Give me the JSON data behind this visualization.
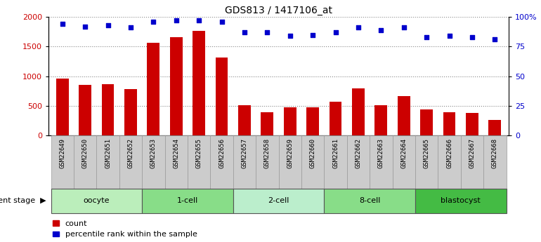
{
  "title": "GDS813 / 1417106_at",
  "samples": [
    "GSM22649",
    "GSM22650",
    "GSM22651",
    "GSM22652",
    "GSM22653",
    "GSM22654",
    "GSM22655",
    "GSM22656",
    "GSM22657",
    "GSM22658",
    "GSM22659",
    "GSM22660",
    "GSM22661",
    "GSM22662",
    "GSM22663",
    "GSM22664",
    "GSM22665",
    "GSM22666",
    "GSM22667",
    "GSM22668"
  ],
  "counts": [
    960,
    850,
    870,
    780,
    1560,
    1660,
    1760,
    1310,
    510,
    395,
    470,
    480,
    570,
    790,
    510,
    660,
    435,
    395,
    385,
    265
  ],
  "percentiles": [
    94,
    92,
    93,
    91,
    96,
    97,
    97,
    96,
    87,
    87,
    84,
    85,
    87,
    91,
    89,
    91,
    83,
    84,
    83,
    81
  ],
  "bar_color": "#cc0000",
  "dot_color": "#0000cc",
  "ylim_left": [
    0,
    2000
  ],
  "ylim_right": [
    0,
    100
  ],
  "yticks_left": [
    0,
    500,
    1000,
    1500,
    2000
  ],
  "yticks_right": [
    0,
    25,
    50,
    75,
    100
  ],
  "ytick_labels_right": [
    "0",
    "25",
    "50",
    "75",
    "100%"
  ],
  "stages": [
    {
      "label": "oocyte",
      "start": 0,
      "end": 4,
      "color": "#bbeebb"
    },
    {
      "label": "1-cell",
      "start": 4,
      "end": 8,
      "color": "#88dd88"
    },
    {
      "label": "2-cell",
      "start": 8,
      "end": 12,
      "color": "#bbeecc"
    },
    {
      "label": "8-cell",
      "start": 12,
      "end": 16,
      "color": "#88dd88"
    },
    {
      "label": "blastocyst",
      "start": 16,
      "end": 20,
      "color": "#44bb44"
    }
  ],
  "xtick_bg_color": "#cccccc",
  "stage_label_prefix": "development stage",
  "legend_count_label": "count",
  "legend_pct_label": "percentile rank within the sample",
  "background_color": "#ffffff",
  "grid_color": "#888888",
  "bar_width": 0.55,
  "title_fontsize": 10,
  "tick_fontsize": 6.5,
  "stage_fontsize": 8,
  "legend_fontsize": 8
}
